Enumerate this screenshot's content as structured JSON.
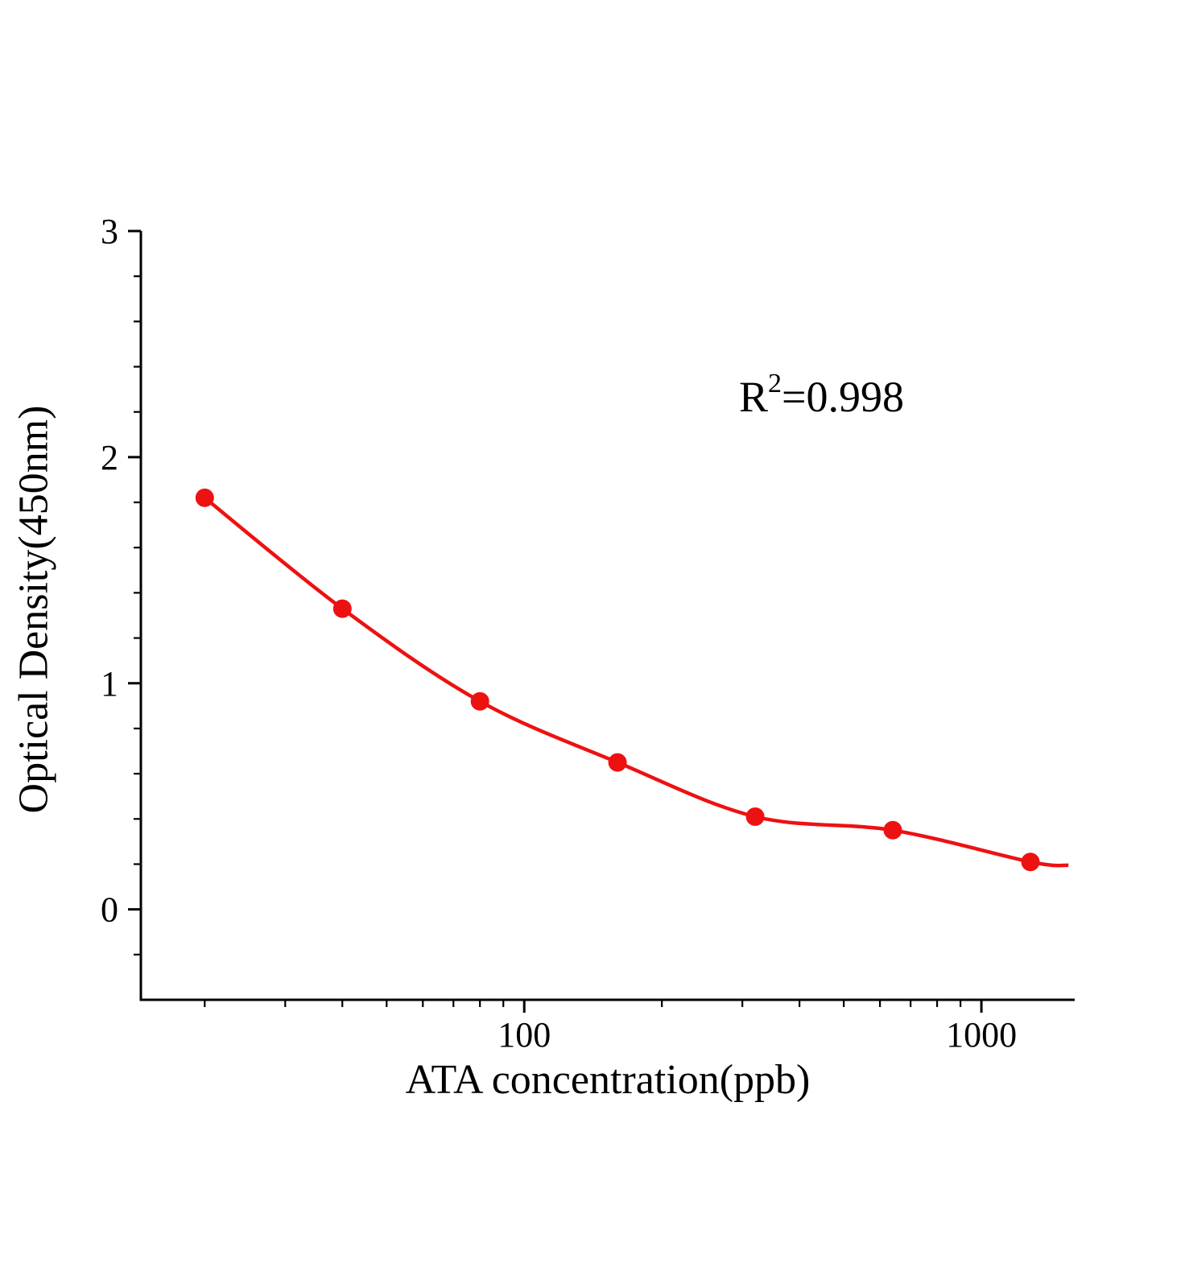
{
  "chart_data": {
    "type": "scatter",
    "title": "",
    "x": [
      20,
      40,
      80,
      160,
      320,
      640,
      1280
    ],
    "y": [
      1.82,
      1.33,
      0.92,
      0.65,
      0.41,
      0.35,
      0.21
    ],
    "curve_end": {
      "x": 1550,
      "y": 0.195
    },
    "xlabel": "ATA concentration(ppb)",
    "ylabel": "Optical Density(450nm)",
    "annotation": {
      "base": "R",
      "exponent": "2",
      "value": "=0.998"
    },
    "x_scale": "log",
    "x_major_ticks": [
      100,
      1000
    ],
    "x_tick_labels": [
      "100",
      "1000"
    ],
    "y_major_ticks": [
      0,
      1,
      2,
      3
    ],
    "y_tick_labels": [
      "0",
      "1",
      "2",
      "3"
    ],
    "y_minor_step": 0.2,
    "xlim": [
      14.5,
      1600
    ],
    "ylim": [
      -0.4,
      3
    ],
    "grid": false,
    "legend": "none",
    "line_color": "#ee1111",
    "marker_color": "#ee1111",
    "axis_color": "#000000"
  }
}
